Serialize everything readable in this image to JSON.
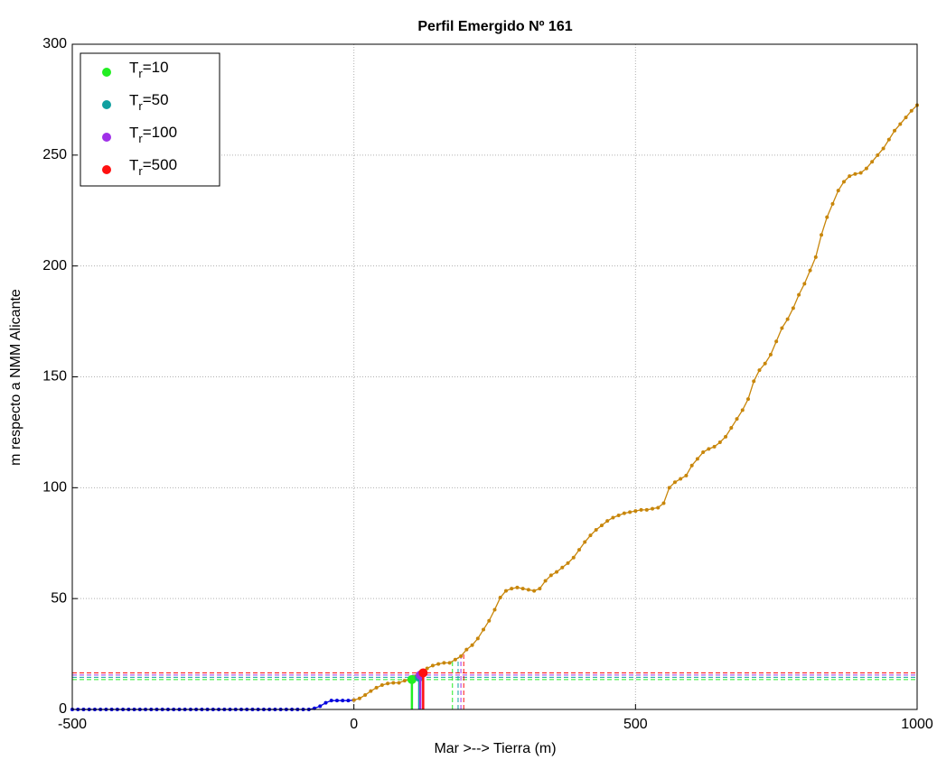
{
  "chart_data": {
    "type": "line",
    "title": "Perfil Emergido Nº 161",
    "xlabel": "Mar >--> Tierra (m)",
    "ylabel": "m respecto a NMM Alicante",
    "xlim": [
      -500,
      1000
    ],
    "xticks": [
      -500,
      0,
      500,
      1000
    ],
    "ylim": [
      0,
      300
    ],
    "yticks": [
      0,
      50,
      100,
      150,
      200,
      250,
      300
    ],
    "grid": true,
    "legend": "upper left",
    "profile": [
      {
        "color": "#0000dd",
        "x": [
          -500,
          -490,
          -480,
          -470,
          -460,
          -450,
          -440,
          -430,
          -420,
          -410,
          -400,
          -390,
          -380,
          -370,
          -360,
          -350,
          -340,
          -330,
          -320,
          -310,
          -300,
          -290,
          -280,
          -270,
          -260,
          -250,
          -240,
          -230,
          -220,
          -210,
          -200,
          -190,
          -180,
          -170,
          -160,
          -150,
          -140,
          -130,
          -120,
          -110,
          -100,
          -90,
          -80,
          -70,
          -60,
          -50,
          -40,
          -30,
          -20,
          -10,
          0
        ],
        "values": [
          0,
          0,
          0,
          0,
          0,
          0,
          0,
          0,
          0,
          0,
          0,
          0,
          0,
          0,
          0,
          0,
          0,
          0,
          0,
          0,
          0,
          0,
          0,
          0,
          0,
          0,
          0,
          0,
          0,
          0,
          0,
          0,
          0,
          0,
          0,
          0,
          0,
          0,
          0,
          0,
          0,
          0,
          0,
          0.5,
          1.5,
          3,
          4,
          4,
          4,
          4,
          4.2
        ]
      },
      {
        "color": "#c8860a",
        "x": [
          0,
          10,
          20,
          30,
          40,
          50,
          60,
          70,
          80,
          90,
          100,
          110,
          120,
          130,
          140,
          150,
          160,
          170,
          180,
          190,
          200,
          210,
          220,
          230,
          240,
          250,
          260,
          270,
          280,
          290,
          300,
          310,
          320,
          330,
          340,
          350,
          360,
          370,
          380,
          390,
          400,
          410,
          420,
          430,
          440,
          450,
          460,
          470,
          480,
          490,
          500,
          510,
          520,
          530,
          540,
          550,
          560,
          570,
          580,
          590,
          600,
          610,
          620,
          630,
          640,
          650,
          660,
          670,
          680,
          690,
          700,
          710,
          720,
          730,
          740,
          750,
          760,
          770,
          780,
          790,
          800,
          810,
          820,
          830,
          840,
          850,
          860,
          870,
          880,
          890,
          900,
          910,
          920,
          930,
          940,
          950,
          960,
          970,
          980,
          990,
          1000
        ],
        "values": [
          4.2,
          5,
          6.5,
          8.3,
          9.8,
          11,
          11.7,
          12,
          12,
          13,
          13.5,
          15,
          17,
          18.5,
          19.8,
          20.5,
          21,
          21,
          22.5,
          24,
          27,
          29,
          32,
          36,
          40,
          45,
          50.5,
          53.5,
          54.5,
          55,
          54.5,
          54,
          53.5,
          54.5,
          58,
          60.5,
          62,
          64,
          66,
          68.5,
          72,
          75.5,
          78.5,
          81,
          83,
          85,
          86.5,
          87.5,
          88.5,
          89,
          89.5,
          90,
          90,
          90.5,
          91,
          93,
          100,
          102.5,
          104,
          105.5,
          110,
          113,
          116,
          117.5,
          118.5,
          120.5,
          123,
          127,
          131,
          135,
          140,
          148,
          153,
          156,
          160,
          166,
          172,
          176,
          181,
          187,
          192,
          198,
          204,
          214,
          222,
          228,
          234,
          238,
          240.5,
          241.5,
          242,
          244,
          247,
          250,
          253,
          257,
          261,
          264,
          267,
          270,
          272.5
        ]
      }
    ],
    "series": [
      {
        "name": "Tr=10",
        "color": "#22ee22",
        "x": [
          103
        ],
        "values": [
          13.5
        ],
        "x_cross": 175
      },
      {
        "name": "Tr=50",
        "color": "#10a0a0",
        "x": [
          116
        ],
        "values": [
          14.5
        ],
        "x_cross": 185
      },
      {
        "name": "Tr=100",
        "color": "#a030e8",
        "x": [
          118
        ],
        "values": [
          15.5
        ],
        "x_cross": 190
      },
      {
        "name": "Tr=500",
        "color": "#ff1010",
        "x": [
          123
        ],
        "values": [
          16.5
        ],
        "x_cross": 195
      }
    ]
  }
}
